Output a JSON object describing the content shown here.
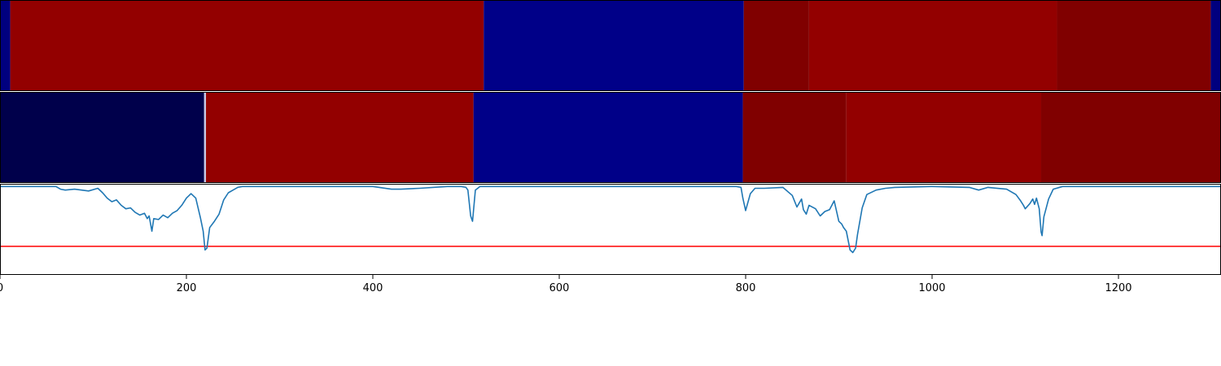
{
  "chart_data": [
    {
      "type": "heatmap",
      "xlim": [
        0,
        1310
      ],
      "segments": [
        {
          "x0": 0,
          "x1": 11,
          "color": "#00007f"
        },
        {
          "x0": 11,
          "x1": 519,
          "color": "#930000"
        },
        {
          "x0": 519,
          "x1": 798,
          "color": "#000088"
        },
        {
          "x0": 798,
          "x1": 868,
          "color": "#800000"
        },
        {
          "x0": 868,
          "x1": 1134,
          "color": "#930000"
        },
        {
          "x0": 1134,
          "x1": 1299,
          "color": "#800000"
        },
        {
          "x0": 1299,
          "x1": 1310,
          "color": "#00007f"
        }
      ]
    },
    {
      "type": "heatmap",
      "xlim": [
        0,
        1310
      ],
      "segments": [
        {
          "x0": 0,
          "x1": 219,
          "color": "#00004b"
        },
        {
          "x0": 219,
          "x1": 221,
          "color": "#c8c8e6"
        },
        {
          "x0": 221,
          "x1": 508,
          "color": "#930000"
        },
        {
          "x0": 508,
          "x1": 797,
          "color": "#000088"
        },
        {
          "x0": 797,
          "x1": 908,
          "color": "#800000"
        },
        {
          "x0": 908,
          "x1": 1117,
          "color": "#930000"
        },
        {
          "x0": 1117,
          "x1": 1310,
          "color": "#800000"
        }
      ]
    },
    {
      "type": "line",
      "xlim": [
        0,
        1310
      ],
      "ylim": [
        -1.0,
        0.02
      ],
      "xticks": [
        "0",
        "200",
        "400",
        "600",
        "800",
        "1000",
        "1200"
      ],
      "xtick_values": [
        0,
        200,
        400,
        600,
        800,
        1000,
        1200
      ],
      "threshold": -0.68,
      "colors": {
        "line": "#1f77b4",
        "threshold": "#ff0000"
      },
      "series": [
        {
          "x": [
            0,
            60,
            65,
            70,
            80,
            95,
            105,
            110,
            115,
            120,
            125,
            130,
            135,
            140,
            145,
            150,
            155,
            158,
            160,
            163,
            165,
            170,
            175,
            180,
            185,
            190,
            195,
            200,
            205,
            210,
            215,
            218,
            220,
            222,
            225,
            230,
            235,
            240,
            245,
            250,
            255,
            260,
            265,
            270,
            280,
            300,
            350,
            400,
            420,
            430,
            450,
            480,
            495,
            500,
            502,
            505,
            507,
            510,
            515,
            550,
            600,
            650,
            700,
            750,
            780,
            790,
            795,
            797,
            800,
            805,
            810,
            820,
            840,
            850,
            855,
            860,
            862,
            865,
            868,
            875,
            880,
            885,
            890,
            895,
            900,
            903,
            905,
            908,
            912,
            915,
            918,
            920,
            925,
            930,
            940,
            950,
            960,
            1000,
            1040,
            1050,
            1060,
            1080,
            1090,
            1095,
            1098,
            1100,
            1105,
            1108,
            1110,
            1112,
            1115,
            1117,
            1118,
            1120,
            1125,
            1130,
            1140,
            1160,
            1200,
            1250,
            1310
          ],
          "y": [
            -0.01,
            -0.01,
            -0.04,
            -0.05,
            -0.04,
            -0.06,
            -0.03,
            -0.08,
            -0.14,
            -0.18,
            -0.16,
            -0.22,
            -0.26,
            -0.25,
            -0.3,
            -0.33,
            -0.31,
            -0.37,
            -0.34,
            -0.51,
            -0.37,
            -0.38,
            -0.33,
            -0.36,
            -0.31,
            -0.28,
            -0.22,
            -0.14,
            -0.09,
            -0.14,
            -0.36,
            -0.51,
            -0.72,
            -0.7,
            -0.47,
            -0.4,
            -0.32,
            -0.16,
            -0.08,
            -0.05,
            -0.02,
            -0.01,
            -0.01,
            -0.01,
            -0.01,
            -0.01,
            -0.01,
            -0.01,
            -0.04,
            -0.04,
            -0.03,
            -0.01,
            -0.01,
            -0.02,
            -0.05,
            -0.34,
            -0.4,
            -0.05,
            -0.01,
            -0.01,
            -0.01,
            -0.01,
            -0.01,
            -0.01,
            -0.01,
            -0.01,
            -0.02,
            -0.14,
            -0.28,
            -0.09,
            -0.03,
            -0.03,
            -0.02,
            -0.11,
            -0.24,
            -0.15,
            -0.27,
            -0.32,
            -0.22,
            -0.26,
            -0.34,
            -0.29,
            -0.27,
            -0.17,
            -0.4,
            -0.43,
            -0.47,
            -0.51,
            -0.72,
            -0.75,
            -0.7,
            -0.55,
            -0.25,
            -0.1,
            -0.05,
            -0.03,
            -0.02,
            -0.01,
            -0.02,
            -0.05,
            -0.02,
            -0.04,
            -0.1,
            -0.17,
            -0.22,
            -0.26,
            -0.2,
            -0.15,
            -0.21,
            -0.14,
            -0.26,
            -0.52,
            -0.56,
            -0.35,
            -0.15,
            -0.04,
            -0.01,
            -0.01,
            -0.01,
            -0.01,
            -0.01
          ]
        }
      ]
    }
  ]
}
